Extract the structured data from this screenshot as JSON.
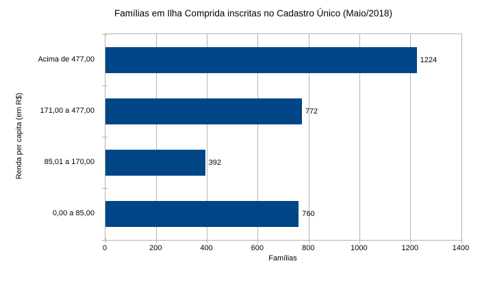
{
  "chart_data": {
    "type": "bar",
    "orientation": "horizontal",
    "title": "Famílias em Ilha Comprida inscritas no Cadastro Único (Maio/2018)",
    "categories": [
      "Acima de 477,00",
      "171,00 a 477,00",
      "85,01 a 170,00",
      "0,00 a 85,00"
    ],
    "values": [
      1224,
      772,
      392,
      760
    ],
    "data_labels": [
      "1224",
      "772",
      "392",
      "760"
    ],
    "xlabel": "Famílias",
    "ylabel": "Renda per capita (em R$)",
    "xlim": [
      0,
      1400
    ],
    "xticks": [
      0,
      200,
      400,
      600,
      800,
      1000,
      1200,
      1400
    ],
    "grid": "vertical-major",
    "legend": "none",
    "colors": {
      "bar": "#004586",
      "grid": "#b3b3b3",
      "axis": "#b3b3b3",
      "text": "#000000",
      "background": "#ffffff"
    }
  }
}
